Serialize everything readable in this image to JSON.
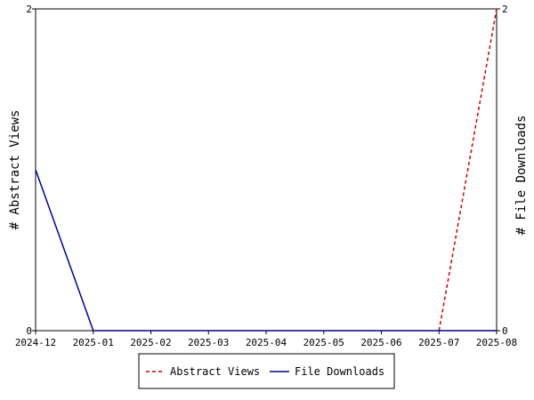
{
  "chart_data": {
    "type": "line",
    "categories": [
      "2024-12",
      "2025-01",
      "2025-02",
      "2025-03",
      "2025-04",
      "2025-05",
      "2025-06",
      "2025-07",
      "2025-08"
    ],
    "series": [
      {
        "name": "Abstract Views",
        "values": [
          null,
          null,
          null,
          null,
          null,
          null,
          null,
          0,
          2
        ],
        "color": "#cc0000",
        "style": "dashed"
      },
      {
        "name": "File Downloads",
        "values": [
          1,
          0,
          0,
          0,
          0,
          0,
          0,
          0,
          0
        ],
        "color": "#000099",
        "style": "solid"
      }
    ],
    "ylabel_left": "# Abstract Views",
    "ylabel_right": "# File Downloads",
    "ylim_left": [
      0,
      2
    ],
    "ylim_right": [
      0,
      2
    ],
    "yticks_left": [
      "0",
      "2"
    ],
    "yticks_right": [
      "0",
      "2"
    ],
    "legend_position": "bottom-center"
  }
}
